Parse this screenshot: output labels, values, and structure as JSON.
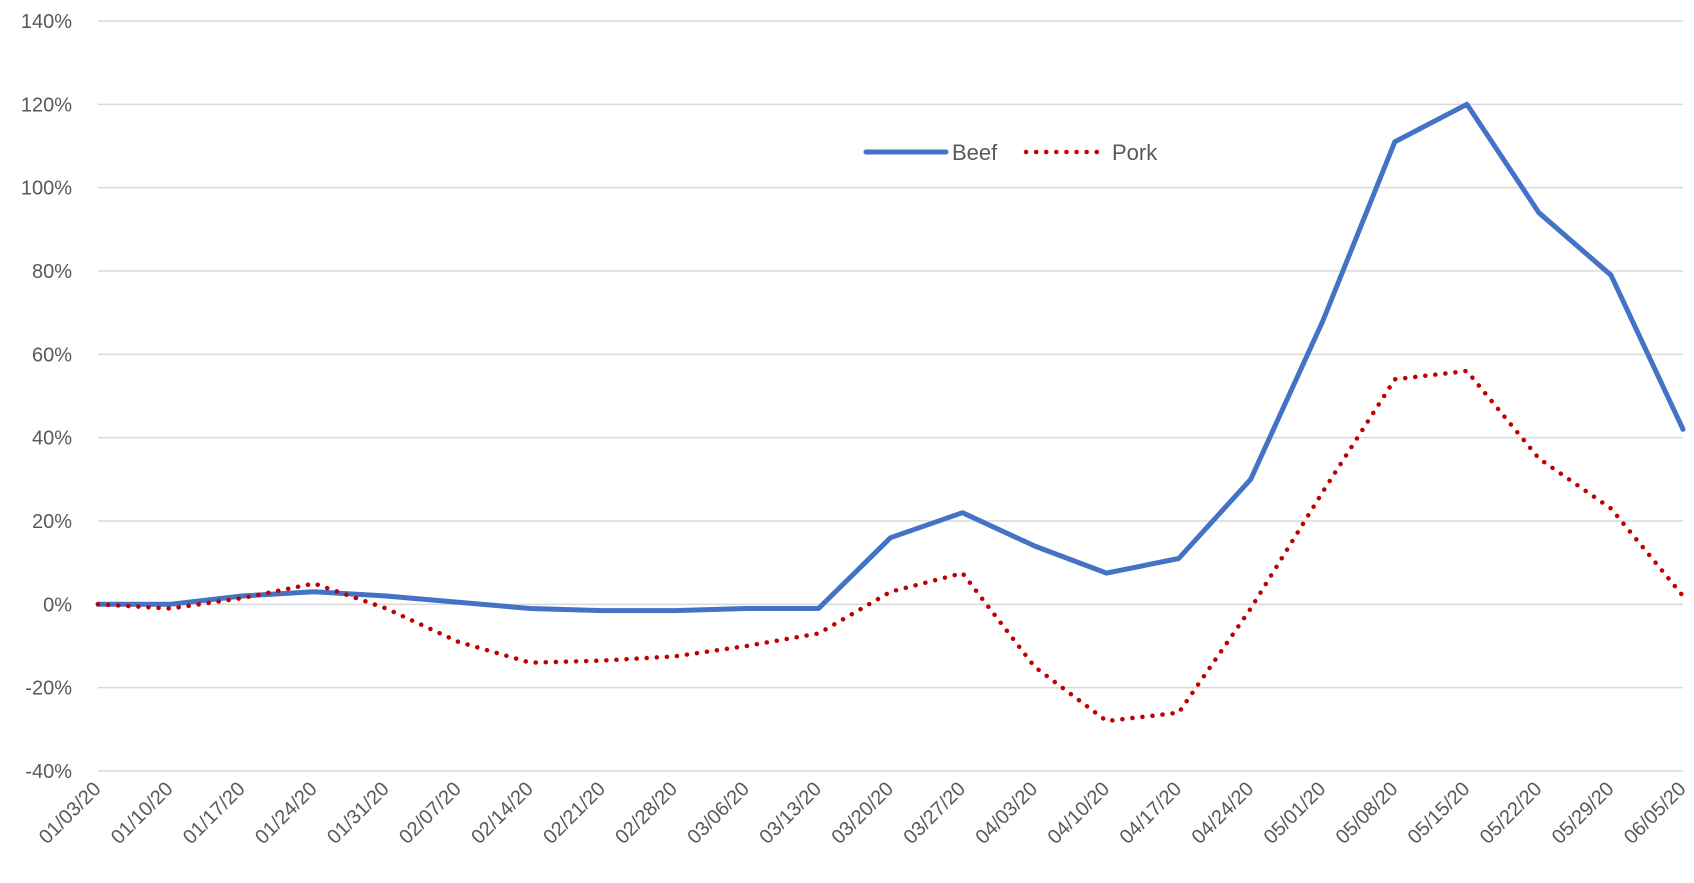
{
  "chart_data": {
    "type": "line",
    "title": "",
    "xlabel": "",
    "ylabel": "",
    "categories": [
      "01/03/20",
      "01/10/20",
      "01/17/20",
      "01/24/20",
      "01/31/20",
      "02/07/20",
      "02/14/20",
      "02/21/20",
      "02/28/20",
      "03/06/20",
      "03/13/20",
      "03/20/20",
      "03/27/20",
      "04/03/20",
      "04/10/20",
      "04/17/20",
      "04/24/20",
      "05/01/20",
      "05/08/20",
      "05/15/20",
      "05/22/20",
      "05/29/20",
      "06/05/20"
    ],
    "y_ticks": [
      "-40%",
      "-20%",
      "0%",
      "20%",
      "40%",
      "60%",
      "80%",
      "100%",
      "120%",
      "140%"
    ],
    "ylim": [
      -40,
      140
    ],
    "y_step": 20,
    "y_unit": "%",
    "grid": "horizontal",
    "legend_position": "top-center",
    "series": [
      {
        "name": "Beef",
        "style": "solid",
        "color": "#4472c4",
        "values": [
          0,
          0,
          2,
          3,
          2,
          0.5,
          -1,
          -1.5,
          -1.5,
          -1,
          -1,
          16,
          22,
          14,
          7.5,
          11,
          30,
          68,
          111,
          120,
          94,
          79,
          42
        ]
      },
      {
        "name": "Pork",
        "style": "dotted",
        "color": "#c00000",
        "values": [
          0,
          -1,
          1.5,
          5,
          -1,
          -9,
          -14,
          -13.5,
          -12.5,
          -10,
          -7,
          3,
          7.5,
          -15,
          -28,
          -26,
          -1,
          27,
          54,
          56,
          35,
          23,
          2
        ]
      }
    ]
  }
}
